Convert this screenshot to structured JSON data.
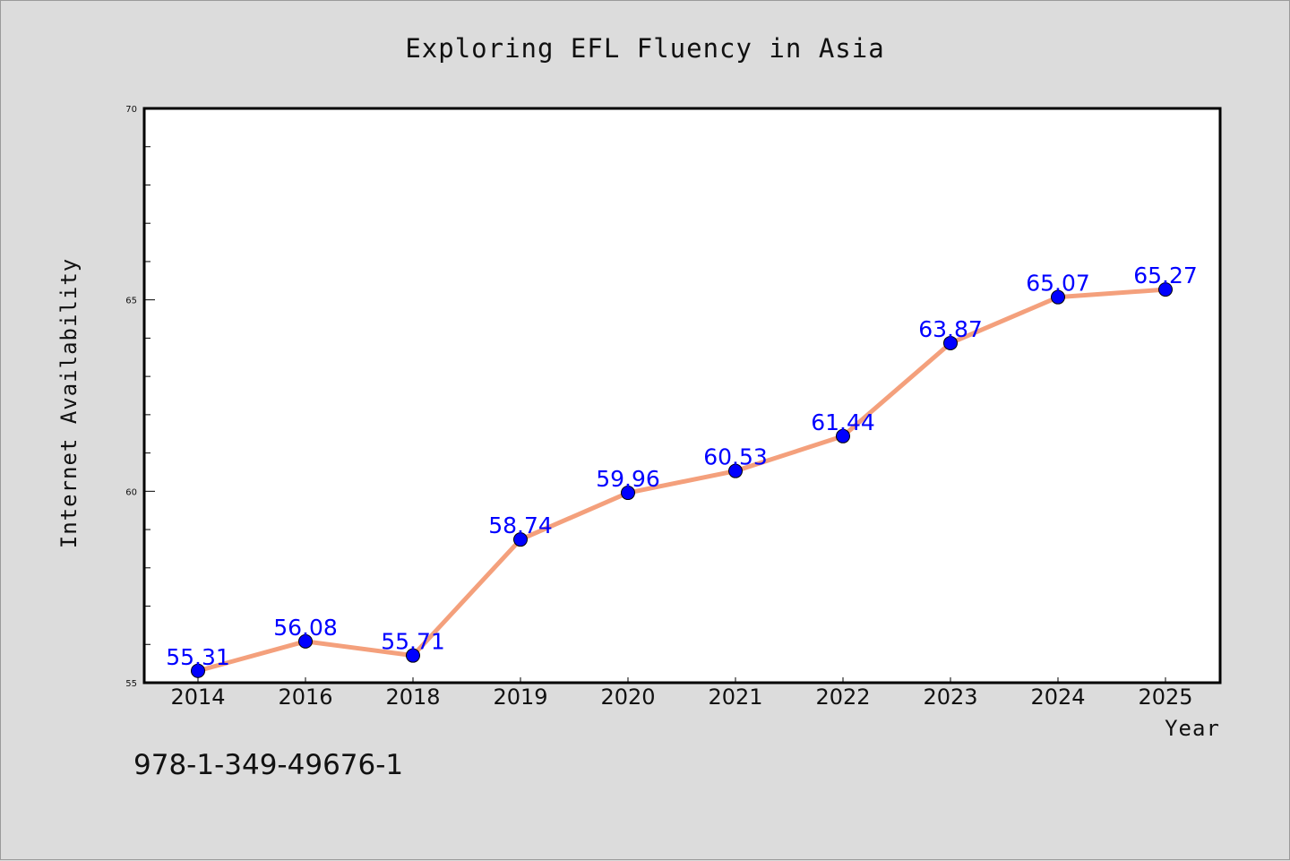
{
  "chart_data": {
    "type": "line",
    "title": "Exploring EFL Fluency in Asia",
    "xlabel": "Year",
    "ylabel": "Internet Availability",
    "categories": [
      "2014",
      "2016",
      "2018",
      "2019",
      "2020",
      "2021",
      "2022",
      "2023",
      "2024",
      "2025"
    ],
    "series": [
      {
        "values": [
          55.31,
          56.08,
          55.71,
          58.74,
          59.96,
          60.53,
          61.44,
          63.87,
          65.07,
          65.27
        ],
        "data_labels": [
          "55.31",
          "56.08",
          "55.71",
          "58.74",
          "59.96",
          "60.53",
          "61.44",
          "63.87",
          "65.07",
          "65.27"
        ],
        "line_color": "#f4a07c",
        "marker_color": "#0000ff"
      }
    ],
    "ylim": [
      55,
      70
    ],
    "yticks": [
      "55",
      "60",
      "65",
      "70"
    ],
    "grid": false,
    "legend": "none"
  },
  "footer_text": "978-1-349-49676-1",
  "colors": {
    "background": "#dcdcdc",
    "plot_background": "#ffffff",
    "line": "#f4a07c",
    "marker": "#0000ff",
    "data_label": "#0000ff"
  }
}
